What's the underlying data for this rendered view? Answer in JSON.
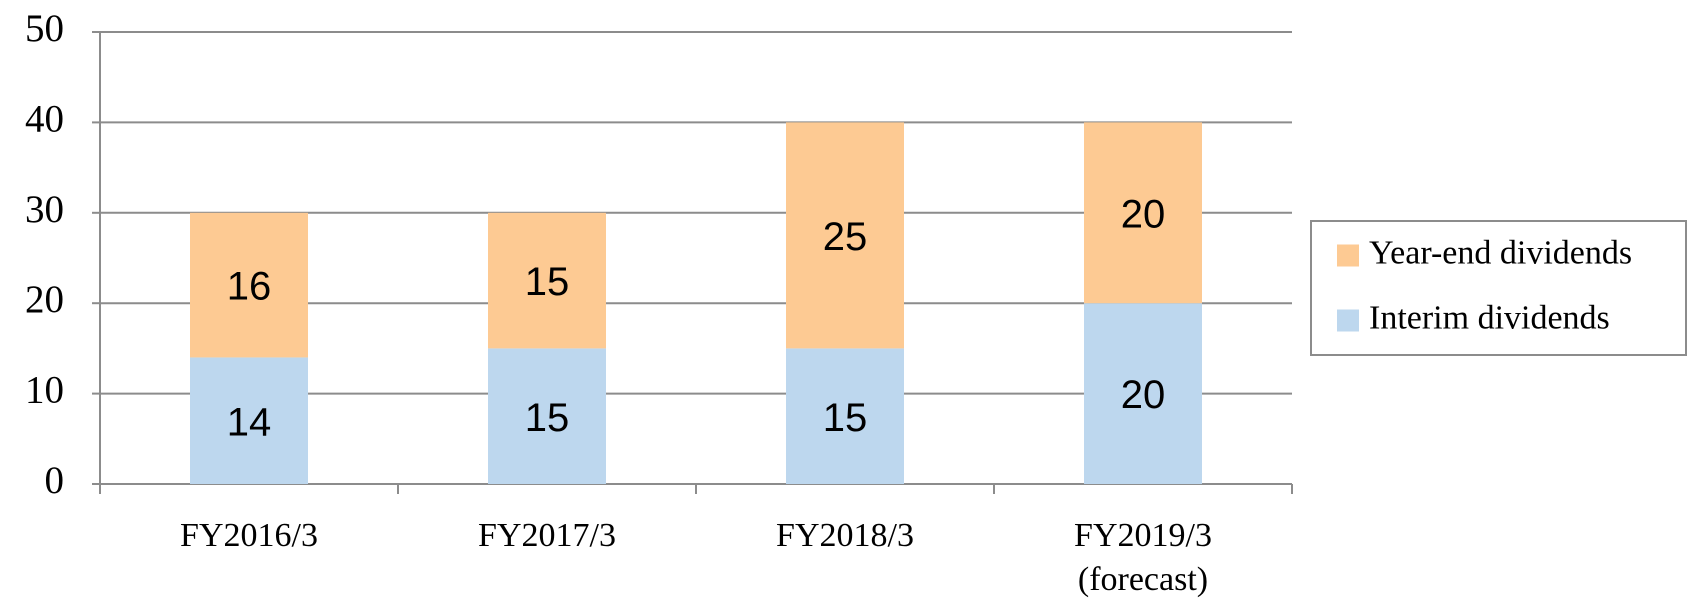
{
  "chart_data": {
    "type": "stacked_bar",
    "categories": [
      "FY2016/3",
      "FY2017/3",
      "FY2018/3",
      "FY2019/3\n(forecast)"
    ],
    "series": [
      {
        "name": "Interim dividends",
        "color": "#bdd7ee",
        "values": [
          14,
          15,
          15,
          20
        ]
      },
      {
        "name": "Year-end dividends",
        "color": "#fdca93",
        "values": [
          16,
          15,
          25,
          20
        ]
      }
    ],
    "ylim": [
      0,
      50
    ],
    "yticks": [
      0,
      10,
      20,
      30,
      40,
      50
    ],
    "grid": true,
    "legend": "right"
  }
}
